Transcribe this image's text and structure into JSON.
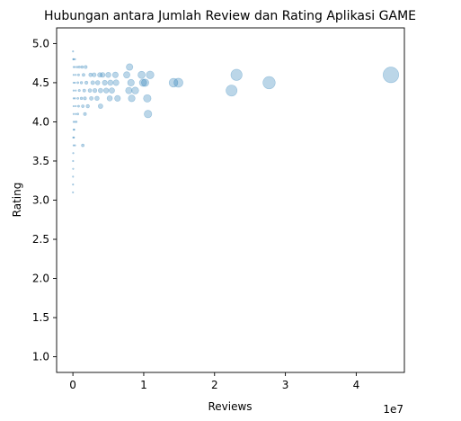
{
  "chart_data": {
    "type": "scatter",
    "title": "Hubungan antara Jumlah Review dan Rating Aplikasi GAME",
    "xlabel": "Reviews",
    "ylabel": "Rating",
    "x_offset_label": "1e7",
    "xlim": [
      -2300000,
      46800000
    ],
    "ylim": [
      0.8,
      5.2
    ],
    "xticks": [
      0,
      10000000,
      20000000,
      30000000,
      40000000
    ],
    "xtick_labels": [
      "0",
      "1",
      "2",
      "3",
      "4"
    ],
    "yticks": [
      1.0,
      1.5,
      2.0,
      2.5,
      3.0,
      3.5,
      4.0,
      4.5,
      5.0
    ],
    "ytick_labels": [
      "1.0",
      "1.5",
      "2.0",
      "2.5",
      "3.0",
      "3.5",
      "4.0",
      "4.5",
      "5.0"
    ],
    "grid": false,
    "marker_color": "#1f77b4",
    "marker_opacity": 0.3,
    "marker_size_encoding": "Reviews",
    "points": [
      {
        "x": 20000,
        "y": 4.9
      },
      {
        "x": 50000,
        "y": 4.8
      },
      {
        "x": 100000,
        "y": 4.8
      },
      {
        "x": 300000,
        "y": 4.8
      },
      {
        "x": 100000,
        "y": 4.7
      },
      {
        "x": 300000,
        "y": 4.7
      },
      {
        "x": 600000,
        "y": 4.7
      },
      {
        "x": 900000,
        "y": 4.7
      },
      {
        "x": 1300000,
        "y": 4.7
      },
      {
        "x": 1800000,
        "y": 4.7
      },
      {
        "x": 8000000,
        "y": 4.7
      },
      {
        "x": 100000,
        "y": 4.6
      },
      {
        "x": 400000,
        "y": 4.6
      },
      {
        "x": 800000,
        "y": 4.6
      },
      {
        "x": 1500000,
        "y": 4.6
      },
      {
        "x": 2500000,
        "y": 4.6
      },
      {
        "x": 3000000,
        "y": 4.6
      },
      {
        "x": 3800000,
        "y": 4.6
      },
      {
        "x": 4200000,
        "y": 4.6
      },
      {
        "x": 5000000,
        "y": 4.6
      },
      {
        "x": 6000000,
        "y": 4.6
      },
      {
        "x": 7600000,
        "y": 4.6
      },
      {
        "x": 9700000,
        "y": 4.6
      },
      {
        "x": 10900000,
        "y": 4.6
      },
      {
        "x": 23100000,
        "y": 4.6
      },
      {
        "x": 44900000,
        "y": 4.6
      },
      {
        "x": 100000,
        "y": 4.5
      },
      {
        "x": 300000,
        "y": 4.5
      },
      {
        "x": 700000,
        "y": 4.5
      },
      {
        "x": 1200000,
        "y": 4.5
      },
      {
        "x": 1900000,
        "y": 4.5
      },
      {
        "x": 2800000,
        "y": 4.5
      },
      {
        "x": 3500000,
        "y": 4.5
      },
      {
        "x": 4500000,
        "y": 4.5
      },
      {
        "x": 5300000,
        "y": 4.5
      },
      {
        "x": 6100000,
        "y": 4.5
      },
      {
        "x": 8200000,
        "y": 4.5
      },
      {
        "x": 9900000,
        "y": 4.5
      },
      {
        "x": 10200000,
        "y": 4.5
      },
      {
        "x": 14200000,
        "y": 4.5
      },
      {
        "x": 14900000,
        "y": 4.5
      },
      {
        "x": 27700000,
        "y": 4.5
      },
      {
        "x": 100000,
        "y": 4.4
      },
      {
        "x": 400000,
        "y": 4.4
      },
      {
        "x": 900000,
        "y": 4.4
      },
      {
        "x": 1600000,
        "y": 4.4
      },
      {
        "x": 2400000,
        "y": 4.4
      },
      {
        "x": 3100000,
        "y": 4.4
      },
      {
        "x": 3900000,
        "y": 4.4
      },
      {
        "x": 4700000,
        "y": 4.4
      },
      {
        "x": 5500000,
        "y": 4.4
      },
      {
        "x": 7900000,
        "y": 4.4
      },
      {
        "x": 8800000,
        "y": 4.4
      },
      {
        "x": 22400000,
        "y": 4.4
      },
      {
        "x": 100000,
        "y": 4.3
      },
      {
        "x": 300000,
        "y": 4.3
      },
      {
        "x": 700000,
        "y": 4.3
      },
      {
        "x": 1200000,
        "y": 4.3
      },
      {
        "x": 1700000,
        "y": 4.3
      },
      {
        "x": 2600000,
        "y": 4.3
      },
      {
        "x": 3400000,
        "y": 4.3
      },
      {
        "x": 5200000,
        "y": 4.3
      },
      {
        "x": 6300000,
        "y": 4.3
      },
      {
        "x": 8300000,
        "y": 4.3
      },
      {
        "x": 10500000,
        "y": 4.3
      },
      {
        "x": 100000,
        "y": 4.2
      },
      {
        "x": 400000,
        "y": 4.2
      },
      {
        "x": 800000,
        "y": 4.2
      },
      {
        "x": 1400000,
        "y": 4.2
      },
      {
        "x": 2100000,
        "y": 4.2
      },
      {
        "x": 3900000,
        "y": 4.2
      },
      {
        "x": 100000,
        "y": 4.1
      },
      {
        "x": 400000,
        "y": 4.1
      },
      {
        "x": 700000,
        "y": 4.1
      },
      {
        "x": 1700000,
        "y": 4.1
      },
      {
        "x": 10600000,
        "y": 4.1
      },
      {
        "x": 100000,
        "y": 4.0
      },
      {
        "x": 300000,
        "y": 4.0
      },
      {
        "x": 500000,
        "y": 4.0
      },
      {
        "x": 100000,
        "y": 3.9
      },
      {
        "x": 200000,
        "y": 3.9
      },
      {
        "x": 50000,
        "y": 3.8
      },
      {
        "x": 150000,
        "y": 3.8
      },
      {
        "x": 100000,
        "y": 3.7
      },
      {
        "x": 300000,
        "y": 3.7
      },
      {
        "x": 1400000,
        "y": 3.7
      },
      {
        "x": 50000,
        "y": 3.6
      },
      {
        "x": 30000,
        "y": 3.5
      },
      {
        "x": 40000,
        "y": 3.4
      },
      {
        "x": 20000,
        "y": 3.3
      },
      {
        "x": 20000,
        "y": 3.2
      },
      {
        "x": 10000,
        "y": 3.1
      }
    ]
  }
}
